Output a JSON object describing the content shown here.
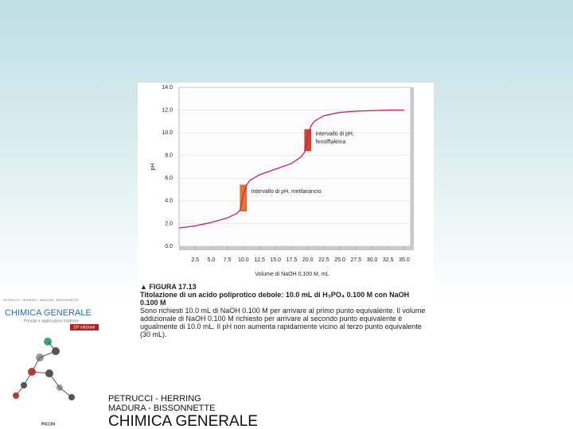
{
  "chart_data": {
    "type": "line",
    "ylabel": "pH",
    "xlabel": "Volume di NaOH 0.100 M, mL",
    "x": [
      0,
      2.5,
      5,
      7.5,
      9,
      9.5,
      10,
      10.5,
      11,
      12.5,
      15,
      17.5,
      19,
      19.5,
      20,
      20.5,
      21,
      22.5,
      25,
      27.5,
      30,
      32.5,
      35
    ],
    "series": [
      {
        "color": "#c8205a",
        "values": [
          1.6,
          1.8,
          2.1,
          2.5,
          2.9,
          3.2,
          4.6,
          5.4,
          5.8,
          6.3,
          6.8,
          7.3,
          7.9,
          8.3,
          9.6,
          10.6,
          11.0,
          11.5,
          11.8,
          11.9,
          11.95,
          12.0,
          12.0
        ]
      }
    ],
    "xlim": [
      0,
      36
    ],
    "ylim": [
      0,
      14
    ],
    "xticks": [
      {
        "value": 2.5,
        "label": "2.5"
      },
      {
        "value": 5,
        "label": "5.0"
      },
      {
        "value": 7.5,
        "label": "7.5"
      },
      {
        "value": 10,
        "label": "10.0"
      },
      {
        "value": 12.5,
        "label": "12.5"
      },
      {
        "value": 15,
        "label": "15.0"
      },
      {
        "value": 17.5,
        "label": "17.5"
      },
      {
        "value": 20,
        "label": "20.0"
      },
      {
        "value": 22.5,
        "label": "22.5"
      },
      {
        "value": 25,
        "label": "25.0"
      },
      {
        "value": 27.5,
        "label": "27.5"
      },
      {
        "value": 30,
        "label": "30.0"
      },
      {
        "value": 32.5,
        "label": "32.5"
      },
      {
        "value": 35,
        "label": "35.0"
      }
    ],
    "yticks": [
      {
        "value": 0,
        "label": "0.0"
      },
      {
        "value": 2,
        "label": "2.0"
      },
      {
        "value": 4,
        "label": "4.0"
      },
      {
        "value": 6,
        "label": "6.0"
      },
      {
        "value": 8,
        "label": "8.0"
      },
      {
        "value": 10,
        "label": "10.0"
      },
      {
        "value": 12,
        "label": "12.0"
      },
      {
        "value": 14,
        "label": "14.0"
      }
    ],
    "grid": true,
    "indicators": [
      {
        "lines": [
          "intervallo di pH, metilarancio"
        ],
        "x": 10,
        "range": [
          3.1,
          5.4
        ]
      },
      {
        "lines": [
          "intervallo di pH,",
          "fenolftaleina"
        ],
        "x": 20,
        "range": [
          8.4,
          10.3
        ]
      }
    ]
  },
  "caption": {
    "figure": "▲ FIGURA 17.13",
    "title": "Titolazione di un acido poliprotico debole: 10.0 mL di H₃PO₄ 0.100 M con NaOH 0.100 M",
    "body": "Sono richiesti 10.0 mL di NaOH 0.100 M per arrivare al primo punto equivalente. Il volume addizionale di NaOH 0.100 M richiesto per arrivare al secondo punto equivalente è ugualmente di 10.0 mL. Il pH non aumenta rapidamente vicino al terzo punto equivalente (30 mL)."
  },
  "book": {
    "authors": [
      "PETRUCCI - HERRING",
      "MADURA - BISSONNETTE"
    ],
    "title": "CHIMICA GENERALE",
    "cover": {
      "authors": "PETRUCCI · HERRING · MADURA · BISSONNETTE",
      "title": "CHIMICA GENERALE",
      "subtitle": "Principi e applicazioni moderne",
      "edition": "10ª edizione",
      "publisher": "PICCIN"
    }
  }
}
